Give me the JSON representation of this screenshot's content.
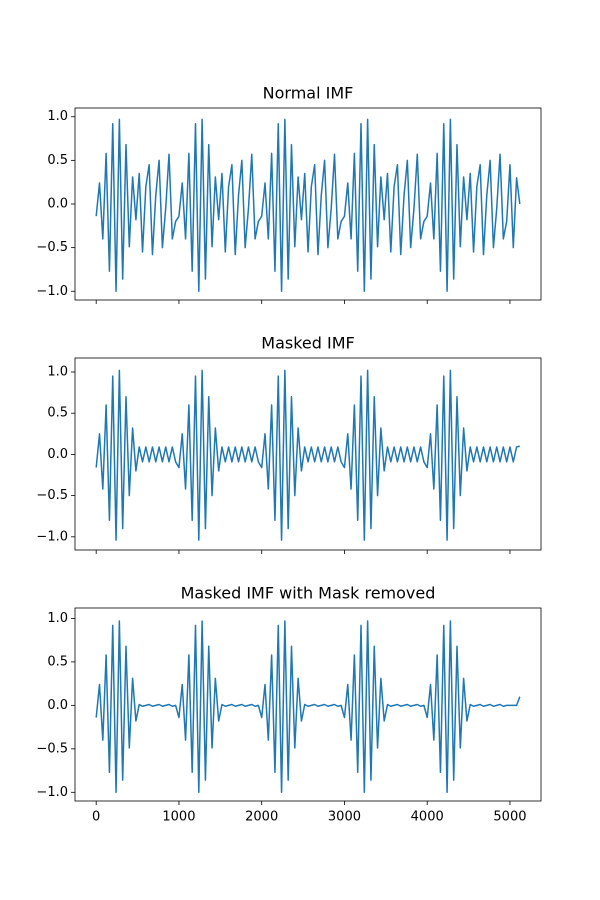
{
  "chart_data": [
    {
      "type": "line",
      "title": "Normal IMF",
      "color": "#1f77b4",
      "xlim": [
        -256,
        5375
      ],
      "ylim": [
        -1.1,
        1.1
      ],
      "xticks": [
        0,
        1000,
        2000,
        3000,
        4000,
        5000
      ],
      "yticks": [
        {
          "value": -1,
          "label": "−1.0"
        },
        {
          "value": -0.5,
          "label": "−0.5"
        },
        {
          "value": 0,
          "label": "0.0"
        },
        0.5,
        {
          "value": 1,
          "label": "1.0"
        }
      ],
      "x": [
        0,
        40,
        80,
        120,
        160,
        200,
        240,
        280,
        320,
        360,
        400,
        440,
        480,
        520,
        560,
        600,
        640,
        680,
        720,
        760,
        800,
        840,
        880,
        920,
        960,
        1000,
        1040,
        1080,
        1120,
        1160,
        1200,
        1240,
        1280,
        1320,
        1360,
        1400,
        1440,
        1480,
        1520,
        1560,
        1600,
        1640,
        1680,
        1720,
        1760,
        1800,
        1840,
        1880,
        1920,
        1960,
        2000,
        2040,
        2080,
        2120,
        2160,
        2200,
        2240,
        2280,
        2320,
        2360,
        2400,
        2440,
        2480,
        2520,
        2560,
        2600,
        2640,
        2680,
        2720,
        2760,
        2800,
        2840,
        2880,
        2920,
        2960,
        3000,
        3040,
        3080,
        3120,
        3160,
        3200,
        3240,
        3280,
        3320,
        3360,
        3400,
        3440,
        3480,
        3520,
        3560,
        3600,
        3640,
        3680,
        3720,
        3760,
        3800,
        3840,
        3880,
        3920,
        3960,
        4000,
        4040,
        4080,
        4120,
        4160,
        4200,
        4240,
        4280,
        4320,
        4360,
        4400,
        4440,
        4480,
        4520,
        4560,
        4600,
        4640,
        4680,
        4720,
        4760,
        4800,
        4840,
        4880,
        4920,
        4960,
        5000,
        5040,
        5080,
        5119
      ],
      "values": [
        -0.14,
        0.24,
        -0.4,
        0.58,
        -0.77,
        0.92,
        -1.0,
        0.97,
        -0.86,
        0.68,
        -0.49,
        0.31,
        -0.18,
        0.35,
        -0.55,
        0.2,
        0.45,
        -0.58,
        0.1,
        0.5,
        -0.5,
        -0.05,
        0.57,
        -0.4,
        -0.2,
        -0.14,
        0.24,
        -0.4,
        0.58,
        -0.77,
        0.92,
        -1.0,
        0.97,
        -0.86,
        0.68,
        -0.49,
        0.31,
        -0.18,
        0.35,
        -0.55,
        0.2,
        0.45,
        -0.58,
        0.1,
        0.5,
        -0.5,
        -0.05,
        0.57,
        -0.4,
        -0.2,
        -0.14,
        0.24,
        -0.4,
        0.58,
        -0.77,
        0.92,
        -1.0,
        0.97,
        -0.86,
        0.68,
        -0.49,
        0.31,
        -0.18,
        0.35,
        -0.55,
        0.2,
        0.45,
        -0.58,
        0.1,
        0.5,
        -0.5,
        -0.05,
        0.57,
        -0.4,
        -0.2,
        -0.14,
        0.24,
        -0.4,
        0.58,
        -0.77,
        0.92,
        -1.0,
        0.97,
        -0.86,
        0.68,
        -0.49,
        0.31,
        -0.18,
        0.35,
        -0.55,
        0.2,
        0.45,
        -0.58,
        0.1,
        0.5,
        -0.5,
        -0.05,
        0.57,
        -0.4,
        -0.2,
        -0.14,
        0.24,
        -0.4,
        0.58,
        -0.77,
        0.92,
        -1.0,
        0.97,
        -0.86,
        0.68,
        -0.49,
        0.31,
        -0.18,
        0.35,
        -0.55,
        0.2,
        0.45,
        -0.58,
        0.1,
        0.5,
        -0.5,
        -0.05,
        0.57,
        -0.4,
        -0.2,
        0.45,
        -0.5,
        0.3,
        0.0
      ]
    },
    {
      "type": "line",
      "title": "Masked IMF",
      "color": "#1f77b4",
      "xlim": [
        -256,
        5375
      ],
      "ylim": [
        -1.16,
        1.17
      ],
      "xticks": [
        0,
        1000,
        2000,
        3000,
        4000,
        5000
      ],
      "yticks": [
        {
          "value": -1,
          "label": "−1.0"
        },
        {
          "value": -0.5,
          "label": "−0.5"
        },
        {
          "value": 0,
          "label": "0.0"
        },
        0.5,
        {
          "value": 1,
          "label": "1.0"
        }
      ],
      "x": [
        0,
        40,
        80,
        120,
        160,
        200,
        240,
        280,
        320,
        360,
        400,
        440,
        480,
        520,
        560,
        600,
        640,
        680,
        720,
        760,
        800,
        840,
        880,
        920,
        960,
        1000,
        1040,
        1080,
        1120,
        1160,
        1200,
        1240,
        1280,
        1320,
        1360,
        1400,
        1440,
        1480,
        1520,
        1560,
        1600,
        1640,
        1680,
        1720,
        1760,
        1800,
        1840,
        1880,
        1920,
        1960,
        2000,
        2040,
        2080,
        2120,
        2160,
        2200,
        2240,
        2280,
        2320,
        2360,
        2400,
        2440,
        2480,
        2520,
        2560,
        2600,
        2640,
        2680,
        2720,
        2760,
        2800,
        2840,
        2880,
        2920,
        2960,
        3000,
        3040,
        3080,
        3120,
        3160,
        3200,
        3240,
        3280,
        3320,
        3360,
        3400,
        3440,
        3480,
        3520,
        3560,
        3600,
        3640,
        3680,
        3720,
        3760,
        3800,
        3840,
        3880,
        3920,
        3960,
        4000,
        4040,
        4080,
        4120,
        4160,
        4200,
        4240,
        4280,
        4320,
        4360,
        4400,
        4440,
        4480,
        4520,
        4560,
        4600,
        4640,
        4680,
        4720,
        4760,
        4800,
        4840,
        4880,
        4920,
        4960,
        5000,
        5040,
        5080,
        5119
      ],
      "values": [
        -0.16,
        0.25,
        -0.42,
        0.6,
        -0.8,
        0.95,
        -1.04,
        1.02,
        -0.9,
        0.7,
        -0.5,
        0.32,
        -0.2,
        0.09,
        -0.09,
        0.09,
        -0.09,
        0.09,
        -0.09,
        0.09,
        -0.09,
        0.09,
        -0.09,
        0.09,
        -0.09,
        -0.16,
        0.25,
        -0.42,
        0.6,
        -0.8,
        0.95,
        -1.04,
        1.02,
        -0.9,
        0.7,
        -0.5,
        0.32,
        -0.2,
        0.09,
        -0.09,
        0.09,
        -0.09,
        0.09,
        -0.09,
        0.09,
        -0.09,
        0.09,
        -0.09,
        0.09,
        -0.09,
        -0.16,
        0.25,
        -0.42,
        0.6,
        -0.8,
        0.95,
        -1.04,
        1.02,
        -0.9,
        0.7,
        -0.5,
        0.32,
        -0.2,
        0.09,
        -0.09,
        0.09,
        -0.09,
        0.09,
        -0.09,
        0.09,
        -0.09,
        0.09,
        -0.09,
        0.09,
        -0.09,
        -0.16,
        0.25,
        -0.42,
        0.6,
        -0.8,
        0.95,
        -1.04,
        1.02,
        -0.9,
        0.7,
        -0.5,
        0.32,
        -0.2,
        0.09,
        -0.09,
        0.09,
        -0.09,
        0.09,
        -0.09,
        0.09,
        -0.09,
        0.09,
        -0.09,
        0.09,
        -0.09,
        -0.16,
        0.25,
        -0.42,
        0.6,
        -0.8,
        0.95,
        -1.04,
        1.02,
        -0.9,
        0.7,
        -0.5,
        0.32,
        -0.2,
        0.09,
        -0.09,
        0.09,
        -0.09,
        0.09,
        -0.09,
        0.09,
        -0.09,
        0.09,
        -0.09,
        0.09,
        -0.09,
        0.09,
        -0.09,
        0.09,
        0.1
      ]
    },
    {
      "type": "line",
      "title": "Masked IMF with Mask removed",
      "color": "#1f77b4",
      "xlim": [
        -256,
        5375
      ],
      "ylim": [
        -1.1,
        1.12
      ],
      "xticks": [
        0,
        1000,
        2000,
        3000,
        4000,
        5000
      ],
      "yticks": [
        {
          "value": -1,
          "label": "−1.0"
        },
        {
          "value": -0.5,
          "label": "−0.5"
        },
        {
          "value": 0,
          "label": "0.0"
        },
        0.5,
        {
          "value": 1,
          "label": "1.0"
        }
      ],
      "x": [
        0,
        40,
        80,
        120,
        160,
        200,
        240,
        280,
        320,
        360,
        400,
        440,
        480,
        520,
        560,
        600,
        640,
        680,
        720,
        760,
        800,
        840,
        880,
        920,
        960,
        1000,
        1040,
        1080,
        1120,
        1160,
        1200,
        1240,
        1280,
        1320,
        1360,
        1400,
        1440,
        1480,
        1520,
        1560,
        1600,
        1640,
        1680,
        1720,
        1760,
        1800,
        1840,
        1880,
        1920,
        1960,
        2000,
        2040,
        2080,
        2120,
        2160,
        2200,
        2240,
        2280,
        2320,
        2360,
        2400,
        2440,
        2480,
        2520,
        2560,
        2600,
        2640,
        2680,
        2720,
        2760,
        2800,
        2840,
        2880,
        2920,
        2960,
        3000,
        3040,
        3080,
        3120,
        3160,
        3200,
        3240,
        3280,
        3320,
        3360,
        3400,
        3440,
        3480,
        3520,
        3560,
        3600,
        3640,
        3680,
        3720,
        3760,
        3800,
        3840,
        3880,
        3920,
        3960,
        4000,
        4040,
        4080,
        4120,
        4160,
        4200,
        4240,
        4280,
        4320,
        4360,
        4400,
        4440,
        4480,
        4520,
        4560,
        4600,
        4640,
        4680,
        4720,
        4760,
        4800,
        4840,
        4880,
        4920,
        4960,
        5000,
        5040,
        5080,
        5119
      ],
      "values": [
        -0.14,
        0.24,
        -0.4,
        0.58,
        -0.77,
        0.92,
        -1.0,
        0.97,
        -0.86,
        0.68,
        -0.49,
        0.31,
        -0.18,
        0.01,
        -0.01,
        0,
        0.01,
        -0.01,
        0,
        0.01,
        -0.01,
        0,
        0.01,
        -0.01,
        0,
        -0.14,
        0.24,
        -0.4,
        0.58,
        -0.77,
        0.92,
        -1.0,
        0.97,
        -0.86,
        0.68,
        -0.49,
        0.31,
        -0.18,
        0.01,
        -0.01,
        0,
        0.01,
        -0.01,
        0,
        0.01,
        -0.01,
        0,
        0.01,
        -0.01,
        0,
        -0.14,
        0.24,
        -0.4,
        0.58,
        -0.77,
        0.92,
        -1.0,
        0.97,
        -0.86,
        0.68,
        -0.49,
        0.31,
        -0.18,
        0.01,
        -0.01,
        0,
        0.01,
        -0.01,
        0,
        0.01,
        -0.01,
        0,
        0.01,
        -0.01,
        0,
        -0.14,
        0.24,
        -0.4,
        0.58,
        -0.77,
        0.92,
        -1.0,
        0.97,
        -0.86,
        0.68,
        -0.49,
        0.31,
        -0.18,
        0.01,
        -0.01,
        0,
        0.01,
        -0.01,
        0,
        0.01,
        -0.01,
        0,
        0.01,
        -0.01,
        0,
        -0.14,
        0.24,
        -0.4,
        0.58,
        -0.77,
        0.92,
        -1.0,
        0.97,
        -0.86,
        0.68,
        -0.49,
        0.31,
        -0.18,
        0.01,
        -0.01,
        0,
        0.01,
        -0.01,
        0,
        0.01,
        -0.01,
        0,
        0.01,
        -0.01,
        0,
        0,
        0,
        0,
        0.1
      ]
    }
  ]
}
